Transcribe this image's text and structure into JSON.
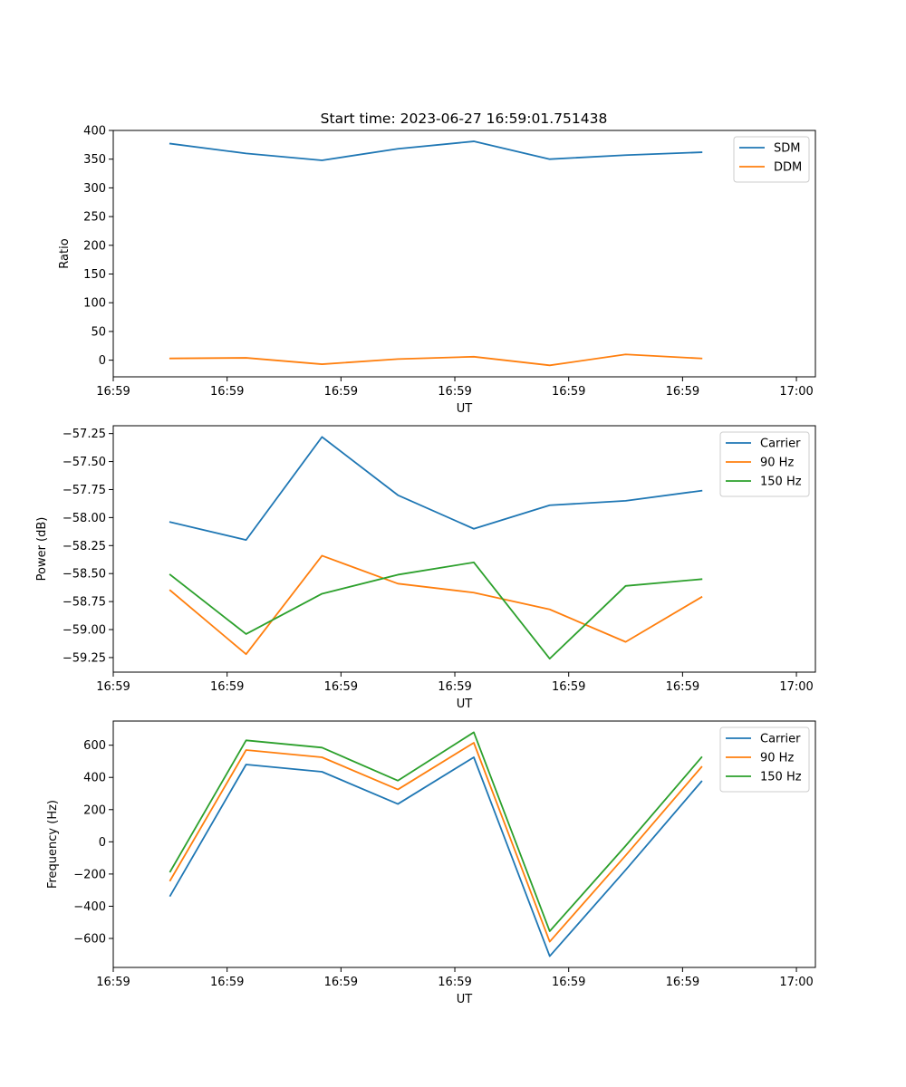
{
  "figure": {
    "title": "Start time: 2023-06-27 16:59:01.751438"
  },
  "chart_data": [
    {
      "type": "line",
      "title": "Start time: 2023-06-27 16:59:01.751438",
      "xlabel": "UT",
      "ylabel": "Ratio",
      "x_seconds": [
        2.25,
        3.25,
        4.25,
        5.25,
        6.25,
        7.25,
        8.25,
        9.25
      ],
      "xlim_seconds": [
        1.5,
        10.75
      ],
      "x_ticks_seconds": [
        1.5,
        3.0,
        4.5,
        6.0,
        7.5,
        9.0,
        10.5
      ],
      "x_tick_labels": [
        "16:59",
        "16:59",
        "16:59",
        "16:59",
        "16:59",
        "16:59",
        "17:00"
      ],
      "ylim": [
        -29,
        400
      ],
      "y_ticks": [
        0,
        50,
        100,
        150,
        200,
        250,
        300,
        350,
        400
      ],
      "y_tick_labels": [
        "0",
        "50",
        "100",
        "150",
        "200",
        "250",
        "300",
        "350",
        "400"
      ],
      "legend_position": "top-right",
      "series": [
        {
          "name": "SDM",
          "color": "#1f77b4",
          "values": [
            377,
            360,
            348,
            368,
            381,
            350,
            357,
            362
          ]
        },
        {
          "name": "DDM",
          "color": "#ff7f0e",
          "values": [
            3,
            4,
            -7,
            2,
            6,
            -9,
            10,
            3
          ]
        }
      ]
    },
    {
      "type": "line",
      "xlabel": "UT",
      "ylabel": "Power (dB)",
      "x_seconds": [
        2.25,
        3.25,
        4.25,
        5.25,
        6.25,
        7.25,
        8.25,
        9.25
      ],
      "xlim_seconds": [
        1.5,
        10.75
      ],
      "x_ticks_seconds": [
        1.5,
        3.0,
        4.5,
        6.0,
        7.5,
        9.0,
        10.5
      ],
      "x_tick_labels": [
        "16:59",
        "16:59",
        "16:59",
        "16:59",
        "16:59",
        "16:59",
        "17:00"
      ],
      "ylim": [
        -59.38,
        -57.18
      ],
      "y_ticks": [
        -59.25,
        -59.0,
        -58.75,
        -58.5,
        -58.25,
        -58.0,
        -57.75,
        -57.5,
        -57.25
      ],
      "y_tick_labels": [
        "−59.25",
        "−59.00",
        "−58.75",
        "−58.50",
        "−58.25",
        "−58.00",
        "−57.75",
        "−57.50",
        "−57.25"
      ],
      "legend_position": "top-right",
      "series": [
        {
          "name": "Carrier",
          "color": "#1f77b4",
          "values": [
            -58.04,
            -58.2,
            -57.28,
            -57.8,
            -58.1,
            -57.89,
            -57.85,
            -57.76
          ]
        },
        {
          "name": "90 Hz",
          "color": "#ff7f0e",
          "values": [
            -58.65,
            -59.22,
            -58.34,
            -58.59,
            -58.67,
            -58.82,
            -59.11,
            -58.71
          ]
        },
        {
          "name": "150 Hz",
          "color": "#2ca02c",
          "values": [
            -58.51,
            -59.04,
            -58.68,
            -58.51,
            -58.4,
            -59.26,
            -58.61,
            -58.55
          ]
        }
      ]
    },
    {
      "type": "line",
      "xlabel": "UT",
      "ylabel": "Frequency (Hz)",
      "x_seconds": [
        2.25,
        3.25,
        4.25,
        5.25,
        6.25,
        7.25,
        8.25,
        9.25
      ],
      "xlim_seconds": [
        1.5,
        10.75
      ],
      "x_ticks_seconds": [
        1.5,
        3.0,
        4.5,
        6.0,
        7.5,
        9.0,
        10.5
      ],
      "x_tick_labels": [
        "16:59",
        "16:59",
        "16:59",
        "16:59",
        "16:59",
        "16:59",
        "17:00"
      ],
      "ylim": [
        -780,
        750
      ],
      "y_ticks": [
        -600,
        -400,
        -200,
        0,
        200,
        400,
        600
      ],
      "y_tick_labels": [
        "−600",
        "−400",
        "−200",
        "0",
        "200",
        "400",
        "600"
      ],
      "legend_position": "top-right",
      "series": [
        {
          "name": "Carrier",
          "color": "#1f77b4",
          "values": [
            -335,
            480,
            435,
            235,
            525,
            -710,
            -175,
            375
          ]
        },
        {
          "name": "90 Hz",
          "color": "#ff7f0e",
          "values": [
            -240,
            570,
            525,
            325,
            615,
            -620,
            -85,
            465
          ]
        },
        {
          "name": "150 Hz",
          "color": "#2ca02c",
          "values": [
            -185,
            630,
            585,
            380,
            680,
            -555,
            -25,
            525
          ]
        }
      ]
    }
  ]
}
